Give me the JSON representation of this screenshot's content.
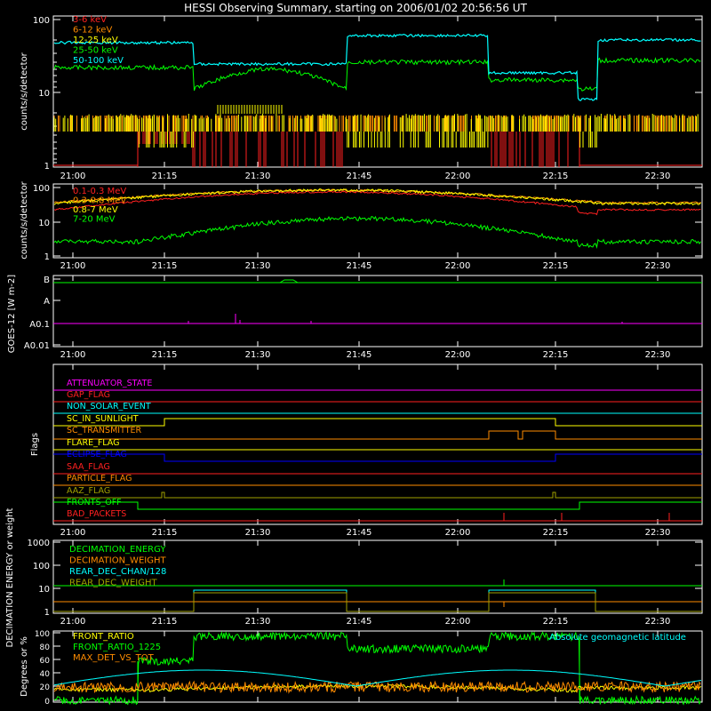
{
  "title": "HESSI Observing Summary, starting on 2006/01/02 20:56:56 UT",
  "time_ticks": [
    "21:00",
    "21:15",
    "21:30",
    "21:45",
    "22:00",
    "22:15",
    "22:30"
  ],
  "colors": {
    "axes": "#ffffff",
    "red": "#ff2020",
    "orange": "#ff8c00",
    "yellow": "#ffff00",
    "green": "#00ff00",
    "cyan": "#00ffff",
    "magenta": "#ff00ff",
    "blue": "#0000ff",
    "olive": "#a0a000"
  },
  "chart_data": [
    {
      "type": "line",
      "ylabel": "counts/s/detector",
      "yscale": "log",
      "ylim": [
        1,
        100
      ],
      "y_ticks": [
        "100",
        "10",
        "1"
      ],
      "series": [
        {
          "name": "3-6 keV",
          "color": "#ff2020"
        },
        {
          "name": "6-12 keV",
          "color": "#ff8c00"
        },
        {
          "name": "12-25 keV",
          "color": "#ffff00"
        },
        {
          "name": "25-50 keV",
          "color": "#00ff00"
        },
        {
          "name": "50-100 keV",
          "color": "#00ffff"
        }
      ]
    },
    {
      "type": "line",
      "ylabel": "counts/s/detector",
      "yscale": "log",
      "ylim": [
        1,
        100
      ],
      "y_ticks": [
        "100",
        "10",
        "1"
      ],
      "series": [
        {
          "name": "0.1-0.3 MeV",
          "color": "#ff2020"
        },
        {
          "name": "0.3-0.8 MeV",
          "color": "#ff8c00"
        },
        {
          "name": "0.8-7 MeV",
          "color": "#ffff00"
        },
        {
          "name": "7-20 MeV",
          "color": "#00ff00"
        }
      ]
    },
    {
      "type": "line",
      "ylabel": "GOES-12 [W m-2]",
      "y_ticks": [
        "B",
        "A",
        "A0.1",
        "A0.01"
      ],
      "series": []
    },
    {
      "type": "line",
      "ylabel": "Flags",
      "series": [
        {
          "name": "ATTENUATOR_STATE",
          "color": "#ff00ff"
        },
        {
          "name": "GAP_FLAG",
          "color": "#ff2020"
        },
        {
          "name": "NON_SOLAR_EVENT",
          "color": "#00ffff"
        },
        {
          "name": "SC_IN_SUNLIGHT",
          "color": "#ffff00"
        },
        {
          "name": "SC_TRANSMITTER",
          "color": "#ff8c00"
        },
        {
          "name": "FLARE_FLAG",
          "color": "#ffff00"
        },
        {
          "name": "ECLIPSE_FLAG",
          "color": "#0000ff"
        },
        {
          "name": "SAA_FLAG",
          "color": "#ff2020"
        },
        {
          "name": "PARTICLE_FLAG",
          "color": "#ff8c00"
        },
        {
          "name": "AAZ_FLAG",
          "color": "#a0a000"
        },
        {
          "name": "FRONTS_OFF",
          "color": "#00ff00"
        },
        {
          "name": "BAD_PACKETS",
          "color": "#ff2020"
        }
      ]
    },
    {
      "type": "line",
      "ylabel": "DECIMATION ENERGY or weight",
      "yscale": "log",
      "y_ticks": [
        "1000",
        "100",
        "10",
        "1"
      ],
      "series": [
        {
          "name": "DECIMATION_ENERGY",
          "color": "#00ff00"
        },
        {
          "name": "DECIMATION_WEIGHT",
          "color": "#ff8c00"
        },
        {
          "name": "REAR_DEC_CHAN/128",
          "color": "#00ffff"
        },
        {
          "name": "REAR_DEC_WEIGHT",
          "color": "#a0a000"
        }
      ]
    },
    {
      "type": "line",
      "ylabel": "Degrees or %",
      "y_ticks": [
        "100",
        "80",
        "60",
        "40",
        "20",
        "0"
      ],
      "series": [
        {
          "name": "FRONT_RATIO",
          "color": "#ffff00"
        },
        {
          "name": "FRONT_RATIO_1225",
          "color": "#00ff00"
        },
        {
          "name": "MAX_DET_VS_TOT",
          "color": "#ff8c00"
        },
        {
          "name": "Absolute geomagnetic latitude",
          "color": "#00ffff"
        }
      ]
    }
  ]
}
